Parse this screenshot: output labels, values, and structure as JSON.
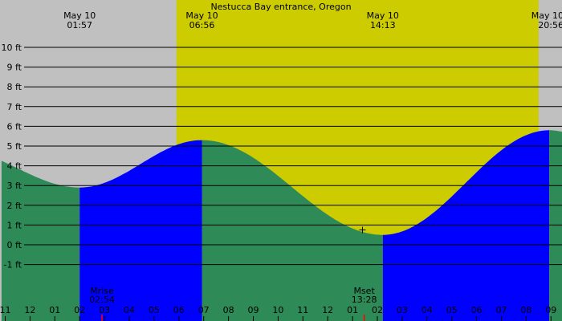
{
  "chart_data": {
    "type": "area",
    "title": "Nestucca Bay entrance, Oregon",
    "y_unit": "ft",
    "ylim": [
      -2,
      10
    ],
    "y_ticks": [
      {
        "value": 10,
        "label": "10 ft"
      },
      {
        "value": 9,
        "label": "9 ft"
      },
      {
        "value": 8,
        "label": "8 ft"
      },
      {
        "value": 7,
        "label": "7 ft"
      },
      {
        "value": 6,
        "label": "6 ft"
      },
      {
        "value": 5,
        "label": "5 ft"
      },
      {
        "value": 4,
        "label": "4 ft"
      },
      {
        "value": 3,
        "label": "3 ft"
      },
      {
        "value": 2,
        "label": "2 ft"
      },
      {
        "value": 1,
        "label": "1 ft"
      },
      {
        "value": 0,
        "label": "0 ft"
      },
      {
        "value": -1,
        "label": "-1 ft"
      }
    ],
    "x_range_hours": [
      22.85,
      45.5
    ],
    "x_ticks": [
      {
        "hour": 23,
        "label": "11"
      },
      {
        "hour": 24,
        "label": "12"
      },
      {
        "hour": 25,
        "label": "01"
      },
      {
        "hour": 26,
        "label": "02"
      },
      {
        "hour": 27,
        "label": "03"
      },
      {
        "hour": 28,
        "label": "04"
      },
      {
        "hour": 29,
        "label": "05"
      },
      {
        "hour": 30,
        "label": "06"
      },
      {
        "hour": 31,
        "label": "07"
      },
      {
        "hour": 32,
        "label": "08"
      },
      {
        "hour": 33,
        "label": "09"
      },
      {
        "hour": 34,
        "label": "10"
      },
      {
        "hour": 35,
        "label": "11"
      },
      {
        "hour": 36,
        "label": "12"
      },
      {
        "hour": 37,
        "label": "01"
      },
      {
        "hour": 38,
        "label": "02"
      },
      {
        "hour": 39,
        "label": "03"
      },
      {
        "hour": 40,
        "label": "04"
      },
      {
        "hour": 41,
        "label": "05"
      },
      {
        "hour": 42,
        "label": "06"
      },
      {
        "hour": 43,
        "label": "07"
      },
      {
        "hour": 44,
        "label": "08"
      },
      {
        "hour": 45,
        "label": "09"
      }
    ],
    "tide_extremes": [
      {
        "hour": 26.0,
        "height": 2.9,
        "date": "May 10",
        "time": "01:57"
      },
      {
        "hour": 30.93,
        "height": 5.3,
        "date": "May 10",
        "time": "06:56"
      },
      {
        "hour": 38.22,
        "height": 0.5,
        "date": "May 10",
        "time": "14:13"
      },
      {
        "hour": 44.93,
        "height": 5.8,
        "date": "May 10",
        "time": "20:56"
      }
    ],
    "daylight_hours": [
      29.9,
      44.5
    ],
    "moon_events": [
      {
        "label": "Mrise",
        "time": "02:54",
        "hour": 26.9
      },
      {
        "label": "Mset",
        "time": "13:28",
        "hour": 37.47
      }
    ],
    "current_point": {
      "hour": 37.4,
      "height": 0.75
    },
    "colors": {
      "night": "#c0c0c0",
      "day": "#cccc00",
      "ebb": "#2e8b57",
      "flood": "#0000ff",
      "grid": "#000000",
      "moon_tick": "#ff0000"
    }
  }
}
